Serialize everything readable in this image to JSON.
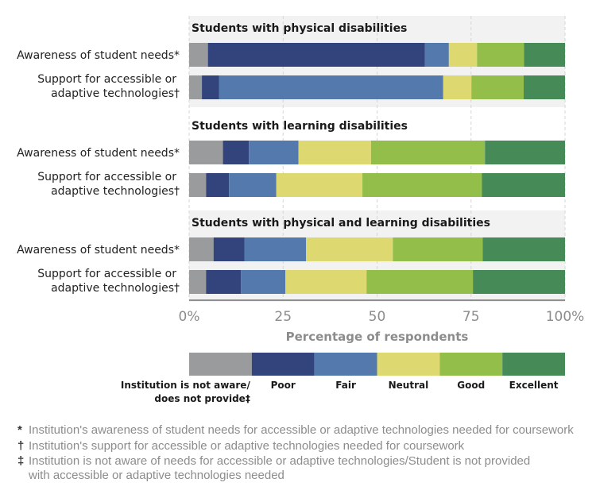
{
  "chart_data": {
    "type": "bar",
    "orientation": "horizontal",
    "stacked": true,
    "xlabel": "Percentage of respondents",
    "xlim": [
      0,
      100
    ],
    "ticks": [
      "0%",
      "25",
      "50",
      "75",
      "100%"
    ],
    "tick_values": [
      0,
      25,
      50,
      75,
      100
    ],
    "grid": true,
    "legend_position": "bottom",
    "legend": [
      "Institution is not aware/ does not provide‡",
      "Poor",
      "Fair",
      "Neutral",
      "Good",
      "Excellent"
    ],
    "legend_lines": [
      [
        "Institution is not aware/",
        "does not provide‡"
      ],
      [
        "Poor"
      ],
      [
        "Fair"
      ],
      [
        "Neutral"
      ],
      [
        "Good"
      ],
      [
        "Excellent"
      ]
    ],
    "colors": [
      "#9a9b9d",
      "#33437c",
      "#5479ad",
      "#ddd86f",
      "#93be4a",
      "#468a58"
    ],
    "groups": [
      {
        "title": "Students with physical disabilities",
        "rows": [
          {
            "label": [
              "Awareness of student needs*"
            ],
            "values": [
              5.0,
              57.7,
              6.4,
              7.5,
              12.5,
              10.9
            ]
          },
          {
            "label": [
              "Support for accessible or",
              "adaptive technologies†"
            ],
            "values": [
              3.4,
              4.6,
              59.6,
              7.5,
              13.9,
              11.0
            ]
          }
        ]
      },
      {
        "title": "Students with learning disabilities",
        "rows": [
          {
            "label": [
              "Awareness of student needs*"
            ],
            "values": [
              9.0,
              6.9,
              13.2,
              19.3,
              30.3,
              21.3
            ]
          },
          {
            "label": [
              "Support for accessible or",
              "adaptive technologies†"
            ],
            "values": [
              4.5,
              6.1,
              12.6,
              22.9,
              31.8,
              22.1
            ]
          }
        ]
      },
      {
        "title": "Students with physical and learning disabilities",
        "rows": [
          {
            "label": [
              "Awareness of student needs*"
            ],
            "values": [
              6.5,
              8.2,
              16.4,
              23.1,
              23.9,
              21.9
            ]
          },
          {
            "label": [
              "Support for accessible or",
              "adaptive technologies†"
            ],
            "values": [
              4.5,
              9.3,
              11.8,
              21.6,
              28.3,
              24.5
            ]
          }
        ]
      }
    ]
  },
  "footnotes": [
    {
      "mark": "*",
      "text": "Institution's awareness of student needs for accessible or adaptive technologies needed for coursework"
    },
    {
      "mark": "†",
      "text": "Institution's support for accessible or adaptive technologies needed for coursework"
    },
    {
      "mark": "‡",
      "text": "Institution is not aware of needs for accessible or adaptive technologies/Student is not provided",
      "text2": "with accessible or adaptive technologies needed"
    }
  ]
}
